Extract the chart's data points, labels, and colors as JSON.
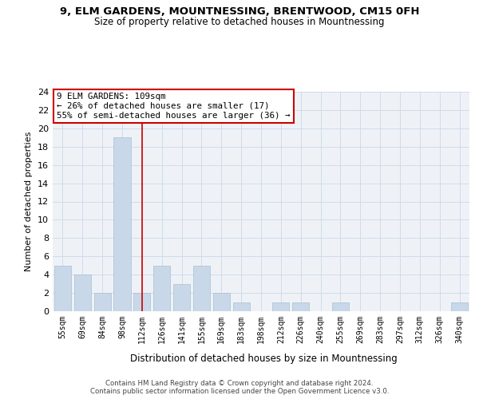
{
  "title": "9, ELM GARDENS, MOUNTNESSING, BRENTWOOD, CM15 0FH",
  "subtitle": "Size of property relative to detached houses in Mountnessing",
  "xlabel": "Distribution of detached houses by size in Mountnessing",
  "ylabel": "Number of detached properties",
  "categories": [
    "55sqm",
    "69sqm",
    "84sqm",
    "98sqm",
    "112sqm",
    "126sqm",
    "141sqm",
    "155sqm",
    "169sqm",
    "183sqm",
    "198sqm",
    "212sqm",
    "226sqm",
    "240sqm",
    "255sqm",
    "269sqm",
    "283sqm",
    "297sqm",
    "312sqm",
    "326sqm",
    "340sqm"
  ],
  "values": [
    5,
    4,
    2,
    19,
    2,
    5,
    3,
    5,
    2,
    1,
    0,
    1,
    1,
    0,
    1,
    0,
    0,
    0,
    0,
    0,
    1
  ],
  "bar_color": "#c8d8e8",
  "bar_edge_color": "#a8bfd0",
  "grid_color": "#d0dce8",
  "annotation_line_x": "112sqm",
  "annotation_line_color": "#cc0000",
  "annotation_box_text": "9 ELM GARDENS: 109sqm\n← 26% of detached houses are smaller (17)\n55% of semi-detached houses are larger (36) →",
  "annotation_box_color": "#ffffff",
  "annotation_box_edge_color": "#cc0000",
  "ylim": [
    0,
    24
  ],
  "yticks": [
    0,
    2,
    4,
    6,
    8,
    10,
    12,
    14,
    16,
    18,
    20,
    22,
    24
  ],
  "footer": "Contains HM Land Registry data © Crown copyright and database right 2024.\nContains public sector information licensed under the Open Government Licence v3.0.",
  "bg_color": "#ffffff",
  "plot_bg_color": "#eef2f7"
}
